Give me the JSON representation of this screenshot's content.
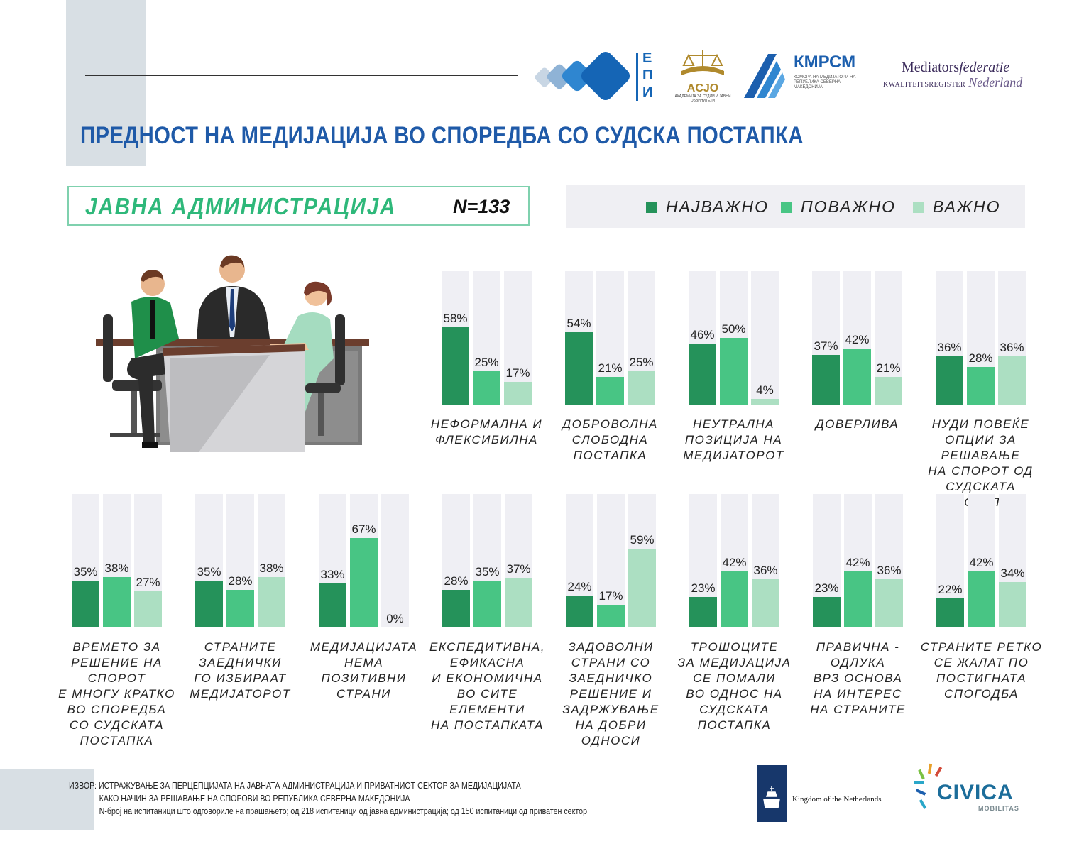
{
  "header": {
    "title": "ПРЕДНОСТ НА МЕДИЈАЦИЈА ВО СПОРЕДБА СО СУДСКА ПОСТАПКА",
    "segment": "ЈАВНА АДМИНИСТРАЦИЈА",
    "sample": "N=133"
  },
  "logos": {
    "epi": "ЕПИ",
    "acjo": "ACJO",
    "acjo_sub": "АКАДЕМИЈА ЗА СУДИИ И ЈАВНИ ОБВИНИТЕЛИ",
    "kmrsm": "КМРСМ",
    "kmrsm_sub": "КОМОРА НА МЕДИЈАТОРИ НА РЕПУБЛИКА СЕВЕРНА МАКЕДОНИЈА",
    "mediators_a": "Mediators",
    "mediators_b": "federatie",
    "mediators_c": "KWALITEITSREGISTER",
    "mediators_d": "Nederland",
    "netherlands": "Kingdom of the Netherlands",
    "civica": "CIVICA",
    "civica_sub": "MOBILITAS"
  },
  "colors": {
    "najvazno": "#25925a",
    "povazno": "#48c584",
    "vazno": "#acdfc2",
    "track": "#efeff4",
    "title": "#1f5aa8"
  },
  "chart_data": {
    "type": "bar",
    "ylim": [
      0,
      100
    ],
    "legend_position": "top-right",
    "series_names": [
      "НАЈВАЖНО",
      "ПОВАЖНО",
      "ВАЖНО"
    ],
    "groups": [
      {
        "label": "НЕФОРМАЛНА И\nФЛЕКСИБИЛНА",
        "values": [
          58,
          25,
          17
        ],
        "value_labels": [
          "58%",
          "25%",
          "17%"
        ]
      },
      {
        "label": "ДОБРОВОЛНА\nСЛОБОДНА\nПОСТАПКА",
        "values": [
          54,
          21,
          25
        ],
        "value_labels": [
          "54%",
          "21%",
          "25%"
        ]
      },
      {
        "label": "НЕУТРАЛНА\nПОЗИЦИЈА НА\nМЕДИЈАТОРОТ",
        "values": [
          46,
          50,
          4
        ],
        "value_labels": [
          "46%",
          "50%",
          "4%"
        ]
      },
      {
        "label": "ДОВЕРЛИВА",
        "values": [
          37,
          42,
          21
        ],
        "value_labels": [
          "37%",
          "42%",
          "21%"
        ]
      },
      {
        "label": "НУДИ ПОВЕЌЕ\nОПЦИИ ЗА РЕШАВАЊЕ\nНА СПОРОТ ОД\nСУДСКАТА ПОСТАПКА",
        "values": [
          36,
          28,
          36
        ],
        "value_labels": [
          "36%",
          "28%",
          "36%"
        ]
      },
      {
        "label": "ВРЕМЕТО ЗА\nРЕШЕНИЕ НА СПОРОТ\nЕ МНОГУ КРАТКО\nВО СПОРЕДБА\nСО СУДСКАТА\nПОСТАПКА",
        "values": [
          35,
          38,
          27
        ],
        "value_labels": [
          "35%",
          "38%",
          "27%"
        ]
      },
      {
        "label": "СТРАНИТЕ\nЗАЕДНИЧКИ\nГО ИЗБИРААТ\nМЕДИЈАТОРОТ",
        "values": [
          35,
          28,
          38
        ],
        "value_labels": [
          "35%",
          "28%",
          "38%"
        ]
      },
      {
        "label": "МЕДИЈАЦИЈАТА\nНЕМА ПОЗИТИВНИ\nСТРАНИ",
        "values": [
          33,
          67,
          0
        ],
        "value_labels": [
          "33%",
          "67%",
          "0%"
        ]
      },
      {
        "label": "ЕКСПЕДИТИВНА,\nЕФИКАСНА\nИ ЕКОНОМИЧНА\nВО СИТЕ ЕЛЕМЕНТИ\nНА ПОСТАПКАТА",
        "values": [
          28,
          35,
          37
        ],
        "value_labels": [
          "28%",
          "35%",
          "37%"
        ]
      },
      {
        "label": "ЗАДОВОЛНИ\nСТРАНИ СО\nЗАЕДНИЧКО\nРЕШЕНИЕ И\nЗАДРЖУВАЊЕ\nНА ДОБРИ ОДНОСИ",
        "values": [
          24,
          17,
          59
        ],
        "value_labels": [
          "24%",
          "17%",
          "59%"
        ]
      },
      {
        "label": "ТРОШОЦИТЕ\nЗА МЕДИЈАЦИЈА\nСЕ ПОМАЛИ\nВО ОДНОС НА\nСУДСКАТА\nПОСТАПКА",
        "values": [
          23,
          42,
          36
        ],
        "value_labels": [
          "23%",
          "42%",
          "36%"
        ]
      },
      {
        "label": "ПРАВИЧНА -\nОДЛУКА\nВРЗ ОСНОВА\nНА ИНТЕРЕС\nНА СТРАНИТЕ",
        "values": [
          23,
          42,
          36
        ],
        "value_labels": [
          "23%",
          "42%",
          "36%"
        ]
      },
      {
        "label": "СТРАНИТЕ РЕТКО\nСЕ ЖАЛАТ ПО\nПОСТИГНАТА\nСПОГОДБА",
        "values": [
          22,
          42,
          34
        ],
        "value_labels": [
          "22%",
          "42%",
          "34%"
        ]
      }
    ]
  },
  "source": {
    "line1": "ИЗВОР: ИСТРАЖУВАЊЕ ЗА ПЕРЦЕПЦИЈАТА НА ЈАВНАТА АДМИНИСТРАЦИЈА И ПРИВАТНИОТ СЕКТОР ЗА МЕДИЈАЦИЈАТА",
    "line2": "КАКО НАЧИН ЗА РЕШАВАЊЕ НА СПОРОВИ ВО РЕПУБЛИКА СЕВЕРНА МАКЕДОНИЈА",
    "line3": "N-број на испитаници што одговориле на прашањето; од 218 испитаници од јавна администрација; од 150 испитаници од приватен сектор"
  }
}
